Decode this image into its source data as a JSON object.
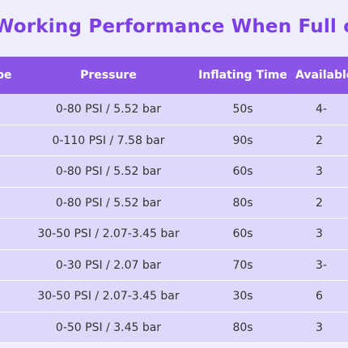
{
  "title": "Working Performance When Full charged",
  "columns": {
    "type": "Type",
    "pressure": "Pressure",
    "time": "Inflating Time",
    "available": "Available"
  },
  "rows": [
    {
      "type": "",
      "pressure": "0-80 PSI / 5.52 bar",
      "time": "50s",
      "available": "4-"
    },
    {
      "type": "",
      "pressure": "0-110 PSI / 7.58 bar",
      "time": "90s",
      "available": "2"
    },
    {
      "type": "",
      "pressure": "0-80 PSI / 5.52 bar",
      "time": "60s",
      "available": "3"
    },
    {
      "type": "",
      "pressure": "0-80 PSI / 5.52 bar",
      "time": "80s",
      "available": "2"
    },
    {
      "type": "",
      "pressure": "30-50 PSI / 2.07-3.45 bar",
      "time": "60s",
      "available": "3"
    },
    {
      "type": "",
      "pressure": "0-30 PSI / 2.07 bar",
      "time": "70s",
      "available": "3-"
    },
    {
      "type": "",
      "pressure": "30-50 PSI / 2.07-3.45 bar",
      "time": "30s",
      "available": "6"
    },
    {
      "type": "",
      "pressure": "0-50 PSI / 3.45 bar",
      "time": "80s",
      "available": "3"
    }
  ],
  "colors": {
    "title": "#7b3fe4",
    "header_bg": "#8a55e6",
    "row_bg": "#ddd9fb",
    "page_bg": "#efeefd"
  }
}
